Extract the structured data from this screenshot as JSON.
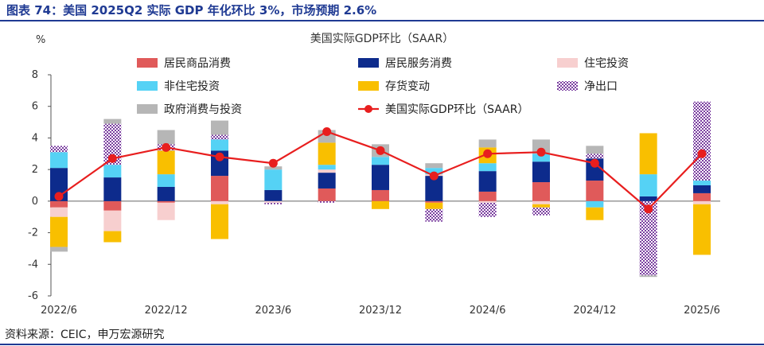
{
  "figure_title": "图表 74：美国 2025Q2 实际 GDP 年化环比 3%，市场预期 2.6%",
  "source": "资料来源：CEIC，申万宏源研究",
  "colors": {
    "header": "#1f3a93",
    "居民商品消费": "#e05a5a",
    "居民服务消费": "#0d2b8c",
    "住宅投资": "#f7cfcf",
    "非住宅投资": "#55d2f5",
    "存货变动": "#f9bf00",
    "净出口": "#7b3fa0",
    "政府消费与投资": "#b6b6b6",
    "gdp_line": "#e81e1e"
  },
  "chart_data": {
    "type": "bar",
    "stacked": true,
    "title": "美国实际GDP环比（SAAR）",
    "ylabel": "%",
    "xlabel": "",
    "ylim": [
      -6,
      8
    ],
    "yticks": [
      "8",
      "6",
      "4",
      "2",
      "0",
      "-2",
      "-4",
      "-6"
    ],
    "ytick_values": [
      8,
      6,
      4,
      2,
      0,
      -2,
      -4,
      -6
    ],
    "x_tick_labels": [
      {
        "index": 0,
        "label": "2022/6"
      },
      {
        "index": 2,
        "label": "2022/12"
      },
      {
        "index": 4,
        "label": "2023/6"
      },
      {
        "index": 6,
        "label": "2023/12"
      },
      {
        "index": 8,
        "label": "2024/6"
      },
      {
        "index": 10,
        "label": "2024/12"
      },
      {
        "index": 12,
        "label": "2025/6"
      }
    ],
    "categories": [
      "2022Q2",
      "2022Q3",
      "2022Q4",
      "2023Q1",
      "2023Q2",
      "2023Q3",
      "2023Q4",
      "2024Q1",
      "2024Q2",
      "2024Q3",
      "2024Q4",
      "2025Q1",
      "2025Q2"
    ],
    "legend_placement": "top",
    "series": [
      {
        "name": "居民商品消费",
        "values": [
          -0.4,
          -0.6,
          -0.1,
          1.6,
          0.0,
          0.8,
          0.7,
          -0.1,
          0.6,
          1.2,
          1.3,
          0.0,
          0.5
        ]
      },
      {
        "name": "居民服务消费",
        "values": [
          2.1,
          1.5,
          0.9,
          1.6,
          0.7,
          1.0,
          1.6,
          1.6,
          1.3,
          1.3,
          1.4,
          0.3,
          0.5
        ]
      },
      {
        "name": "住宅投资",
        "values": [
          -0.6,
          -1.3,
          -1.1,
          -0.2,
          -0.1,
          0.2,
          0.0,
          0.1,
          -0.1,
          -0.2,
          0.0,
          0.0,
          -0.2
        ]
      },
      {
        "name": "非住宅投资",
        "values": [
          1.0,
          0.8,
          0.8,
          0.7,
          1.3,
          0.3,
          0.5,
          0.4,
          0.5,
          0.5,
          -0.4,
          1.4,
          0.3
        ]
      },
      {
        "name": "存货变动",
        "values": [
          -1.9,
          -0.7,
          1.5,
          -2.2,
          0.0,
          1.4,
          -0.5,
          -0.4,
          1.0,
          -0.2,
          -0.8,
          2.6,
          -3.2
        ]
      },
      {
        "name": "净出口",
        "values": [
          0.4,
          2.6,
          0.4,
          0.3,
          -0.1,
          -0.1,
          0.0,
          -0.8,
          -0.9,
          -0.5,
          0.3,
          -4.7,
          5.0
        ]
      },
      {
        "name": "政府消费与投资",
        "values": [
          -0.3,
          0.3,
          0.9,
          0.9,
          0.2,
          0.8,
          0.8,
          0.3,
          0.5,
          0.9,
          0.5,
          -0.1,
          0.0
        ]
      }
    ],
    "line": {
      "name": "美国实际GDP环比（SAAR）",
      "values": [
        0.3,
        2.7,
        3.4,
        2.8,
        2.4,
        4.4,
        3.2,
        1.6,
        3.0,
        3.1,
        2.4,
        -0.5,
        3.0
      ]
    }
  }
}
